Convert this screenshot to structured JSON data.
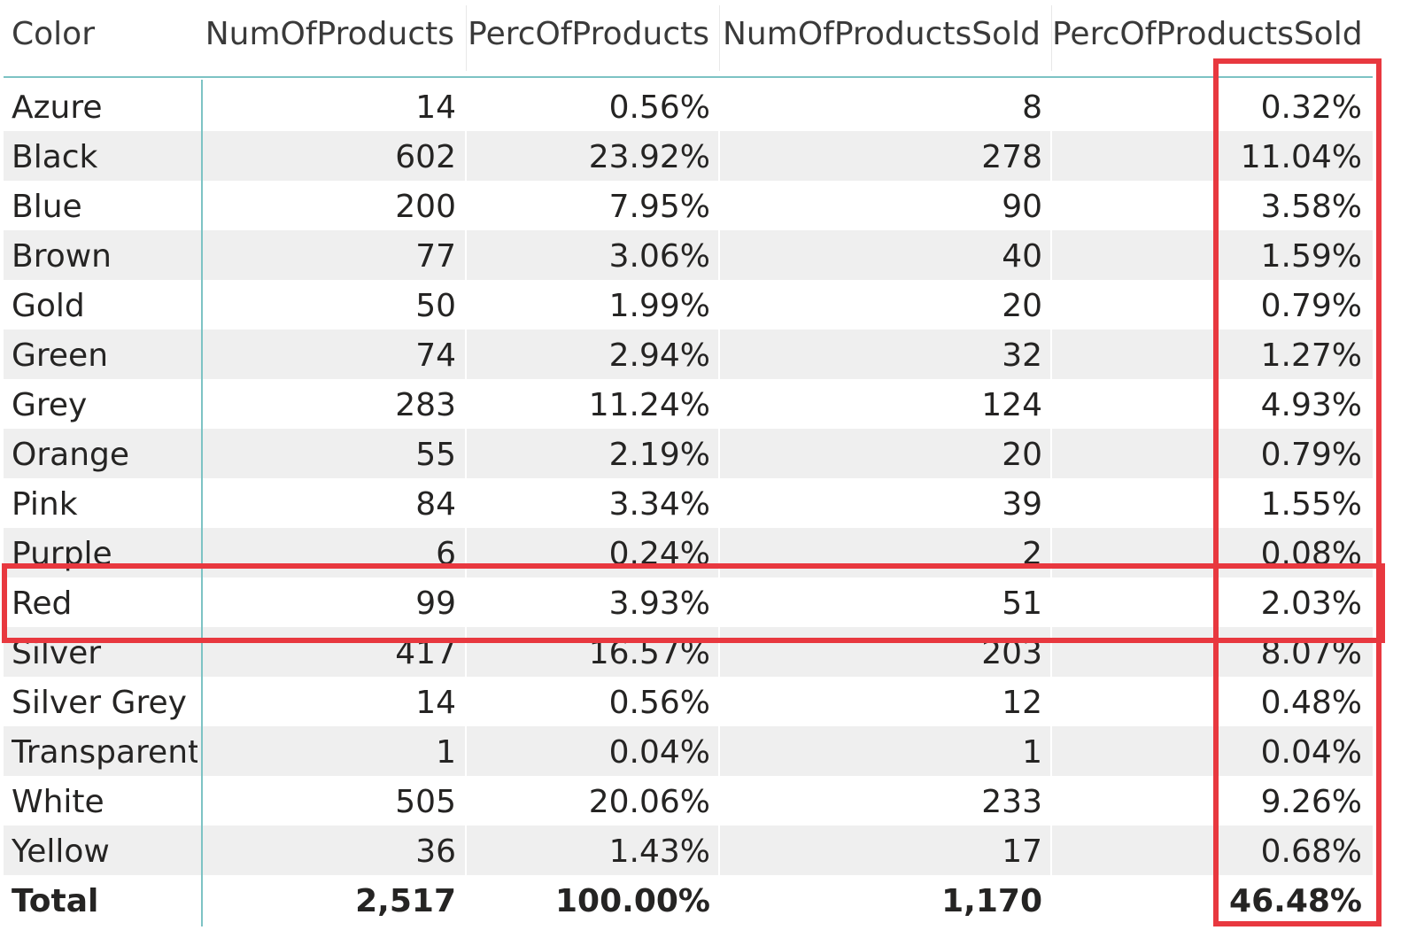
{
  "table": {
    "columns": [
      "Color",
      "NumOfProducts",
      "PercOfProducts",
      "NumOfProductsSold",
      "PercOfProductsSold"
    ],
    "rows": [
      {
        "color": "Azure",
        "num": "14",
        "perc": "0.56%",
        "sold": "8",
        "perc_sold": "0.32%"
      },
      {
        "color": "Black",
        "num": "602",
        "perc": "23.92%",
        "sold": "278",
        "perc_sold": "11.04%"
      },
      {
        "color": "Blue",
        "num": "200",
        "perc": "7.95%",
        "sold": "90",
        "perc_sold": "3.58%"
      },
      {
        "color": "Brown",
        "num": "77",
        "perc": "3.06%",
        "sold": "40",
        "perc_sold": "1.59%"
      },
      {
        "color": "Gold",
        "num": "50",
        "perc": "1.99%",
        "sold": "20",
        "perc_sold": "0.79%"
      },
      {
        "color": "Green",
        "num": "74",
        "perc": "2.94%",
        "sold": "32",
        "perc_sold": "1.27%"
      },
      {
        "color": "Grey",
        "num": "283",
        "perc": "11.24%",
        "sold": "124",
        "perc_sold": "4.93%"
      },
      {
        "color": "Orange",
        "num": "55",
        "perc": "2.19%",
        "sold": "20",
        "perc_sold": "0.79%"
      },
      {
        "color": "Pink",
        "num": "84",
        "perc": "3.34%",
        "sold": "39",
        "perc_sold": "1.55%"
      },
      {
        "color": "Purple",
        "num": "6",
        "perc": "0.24%",
        "sold": "2",
        "perc_sold": "0.08%"
      },
      {
        "color": "Red",
        "num": "99",
        "perc": "3.93%",
        "sold": "51",
        "perc_sold": "2.03%"
      },
      {
        "color": "Silver",
        "num": "417",
        "perc": "16.57%",
        "sold": "203",
        "perc_sold": "8.07%"
      },
      {
        "color": "Silver Grey",
        "num": "14",
        "perc": "0.56%",
        "sold": "12",
        "perc_sold": "0.48%"
      },
      {
        "color": "Transparent",
        "num": "1",
        "perc": "0.04%",
        "sold": "1",
        "perc_sold": "0.04%"
      },
      {
        "color": "White",
        "num": "505",
        "perc": "20.06%",
        "sold": "233",
        "perc_sold": "9.26%"
      },
      {
        "color": "Yellow",
        "num": "36",
        "perc": "1.43%",
        "sold": "17",
        "perc_sold": "0.68%"
      }
    ],
    "total": {
      "color": "Total",
      "num": "2,517",
      "perc": "100.00%",
      "sold": "1,170",
      "perc_sold": "46.48%"
    }
  },
  "colors": {
    "highlight": "#e8383f",
    "header_rule": "#7dc3c4",
    "row_shade": "#efefef"
  }
}
